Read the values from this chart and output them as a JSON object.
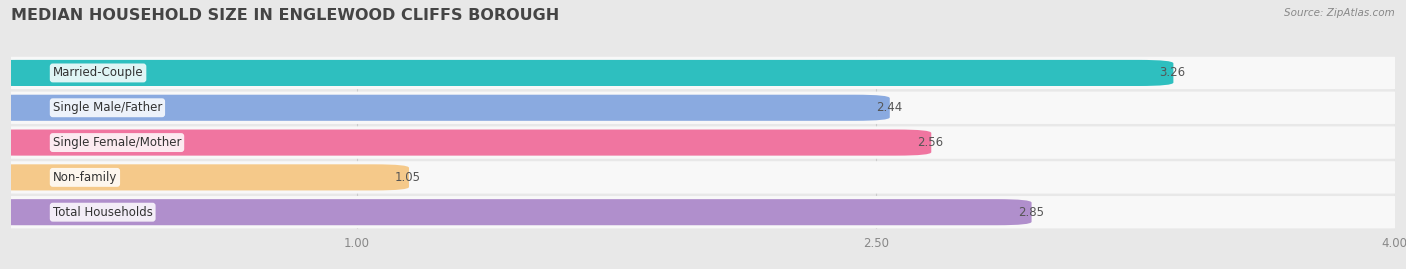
{
  "title": "MEDIAN HOUSEHOLD SIZE IN ENGLEWOOD CLIFFS BOROUGH",
  "source": "Source: ZipAtlas.com",
  "categories": [
    "Married-Couple",
    "Single Male/Father",
    "Single Female/Mother",
    "Non-family",
    "Total Households"
  ],
  "values": [
    3.26,
    2.44,
    2.56,
    1.05,
    2.85
  ],
  "bar_colors": [
    "#2ebfbf",
    "#8aaae0",
    "#f075a0",
    "#f5c98a",
    "#b08fcc"
  ],
  "xlim": [
    0,
    4.0
  ],
  "xmin": 0.0,
  "xticks": [
    1.0,
    2.5,
    4.0
  ],
  "background_color": "#e8e8e8",
  "bar_bg_color": "#f2f2f2",
  "title_fontsize": 11.5,
  "label_fontsize": 8.5,
  "value_fontsize": 8.5
}
